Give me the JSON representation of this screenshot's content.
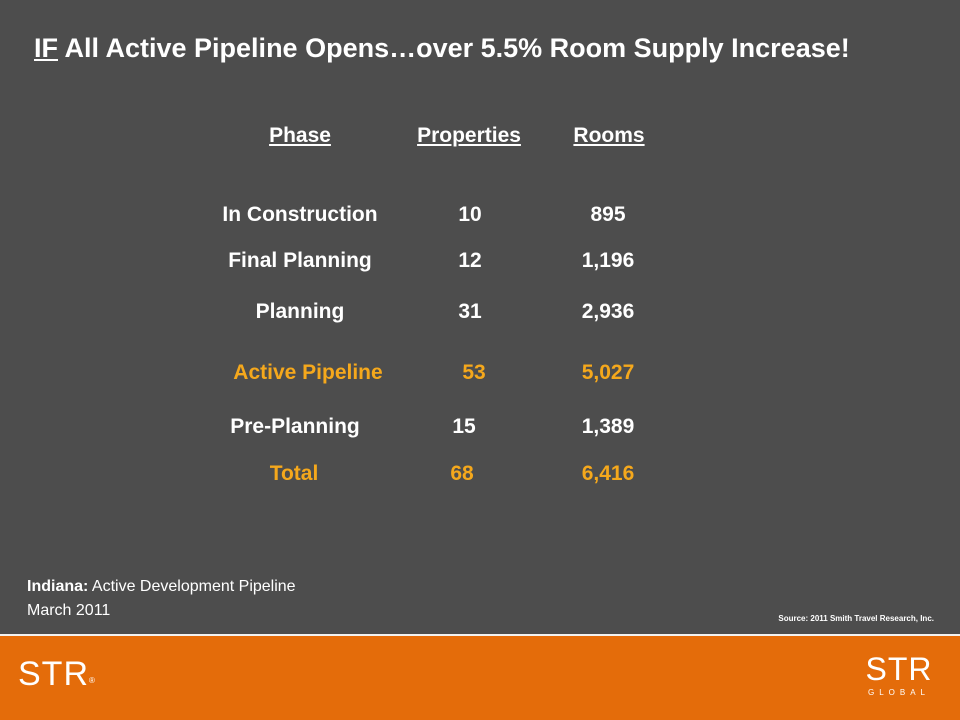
{
  "title": {
    "prefix": "IF",
    "rest": " All Active Pipeline Opens…over 5.5% Room Supply Increase!"
  },
  "table": {
    "headers": [
      "Phase",
      "Properties",
      "Rooms"
    ],
    "rows": [
      {
        "phase": "In Construction",
        "properties": "10",
        "rooms": "895"
      },
      {
        "phase": "Final Planning",
        "properties": "12",
        "rooms": "1,196"
      },
      {
        "phase": "Planning",
        "properties": "31",
        "rooms": "2,936"
      },
      {
        "phase": "Active Pipeline",
        "properties": "53",
        "rooms": "5,027"
      },
      {
        "phase": "Pre-Planning",
        "properties": "15",
        "rooms": "1,389"
      },
      {
        "phase": "Total",
        "properties": "68",
        "rooms": "6,416"
      }
    ]
  },
  "caption": {
    "state": "Indiana:",
    "description": "Active Development  Pipeline",
    "date": "March 2011"
  },
  "source": "Source: 2011 Smith Travel Research, Inc.",
  "footer": {
    "logo_left": "STR",
    "logo_left_mark": "®",
    "logo_right_top": "STR",
    "logo_right_bottom": "GLOBAL"
  },
  "colors": {
    "background": "#4d4d4d",
    "highlight": "#f5a81c",
    "footer": "#e46c0a"
  }
}
